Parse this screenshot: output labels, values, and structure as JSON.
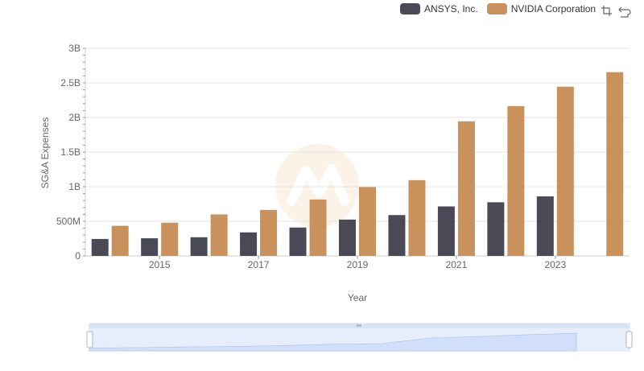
{
  "chart_data": {
    "type": "bar",
    "title": "",
    "xlabel": "Year",
    "ylabel": "SG&A Expenses",
    "categories": [
      "2014",
      "2015",
      "2016",
      "2017",
      "2018",
      "2019",
      "2020",
      "2021",
      "2022",
      "2023",
      "2024"
    ],
    "x_tick_labels": [
      "2015",
      "2017",
      "2019",
      "2021",
      "2023"
    ],
    "y_tick_labels": [
      "0",
      "500M",
      "1B",
      "1.5B",
      "2B",
      "2.5B",
      "3B"
    ],
    "ylim": [
      0,
      3000000000
    ],
    "grid": true,
    "legend_position": "top-right",
    "series": [
      {
        "name": "ANSYS, Inc.",
        "color": "#4a4a56",
        "values": [
          245000000,
          255000000,
          270000000,
          340000000,
          410000000,
          525000000,
          590000000,
          715000000,
          775000000,
          860000000,
          null
        ]
      },
      {
        "name": "NVIDIA Corporation",
        "color": "#c9925d",
        "values": [
          435000000,
          480000000,
          600000000,
          665000000,
          815000000,
          995000000,
          1095000000,
          1945000000,
          2165000000,
          2445000000,
          2655000000
        ]
      }
    ]
  },
  "toolbox": {
    "zoom_icon": "zoom-icon",
    "reset_icon": "restore-icon"
  },
  "slider": {
    "fill_color": "#d2dffa",
    "border_color": "#d2dbee"
  }
}
